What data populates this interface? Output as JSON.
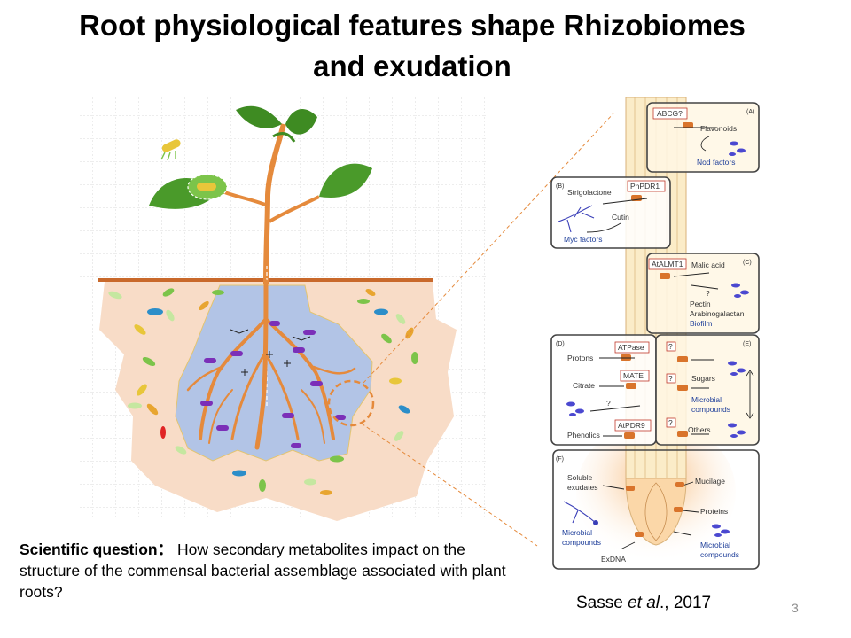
{
  "slide": {
    "title_line1": "Root physiological features shape Rhizobiomes",
    "title_line2": "and exudation",
    "question_label": "Scientific question：",
    "question_text": "How secondary metabolites  impact on the structure of the commensal bacterial assemblage associated with plant roots?",
    "citation_author": "Sasse ",
    "citation_etal": "et al",
    "citation_year": "., 2017",
    "page_number": "3"
  },
  "panels": {
    "A": {
      "letter": "(A)",
      "transporter": "ABCG?",
      "labels": [
        "Flavonoids",
        "Nod factors"
      ]
    },
    "B": {
      "letter": "(B)",
      "transporter": "PhPDR1",
      "labels": [
        "Strigolactone",
        "Cutin",
        "Myc factors"
      ]
    },
    "C": {
      "letter": "(C)",
      "transporter": "AtALMT1",
      "labels": [
        "Malic acid",
        "?",
        "Pectin",
        "Arabinogalactan",
        "Biofilm"
      ]
    },
    "D": {
      "letter": "(D)",
      "transporters": [
        "ATPase",
        "MATE",
        "AtPDR9"
      ],
      "labels": [
        "Protons",
        "Citrate",
        "?",
        "Phenolics"
      ]
    },
    "E": {
      "letter": "(E)",
      "labels": [
        "?",
        "Sugars",
        "?",
        "Microbial",
        "compounds",
        "?",
        "Others"
      ]
    },
    "F": {
      "letter": "(F)",
      "labels": [
        "Soluble",
        "exudates",
        "Mucilage",
        "Proteins",
        "Microbial",
        "compounds",
        "Microbial",
        "compounds",
        "ExDNA"
      ]
    }
  },
  "colors": {
    "soil": "#f8dcc7",
    "root_zone": "#b2c4e6",
    "root": "#e58a3c",
    "leaf": "#4a9a2a",
    "soil_line": "#c9692b",
    "microbe_blue": "#4b48d0",
    "panel_border": "#444444"
  }
}
